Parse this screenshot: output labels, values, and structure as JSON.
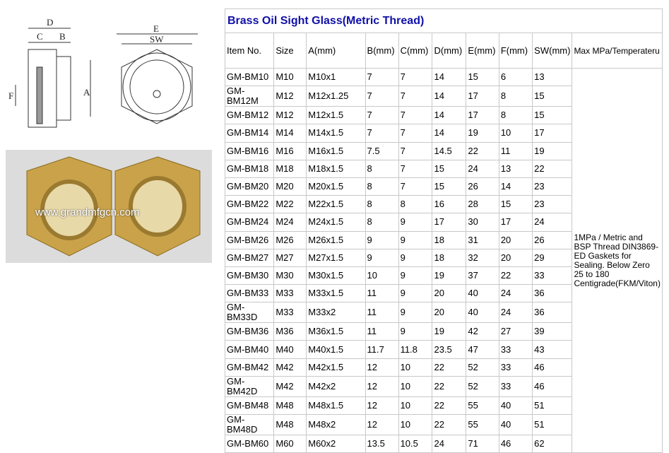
{
  "title": "Brass Oil Sight Glass(Metric Thread)",
  "headers": [
    "Item No.",
    "Size",
    "A(mm)",
    "B(mm)",
    "C(mm)",
    "D(mm)",
    "E(mm)",
    "F(mm)",
    "SW(mm)",
    "Max MPa/Temperateru"
  ],
  "rows": [
    [
      "GM-BM10",
      "M10",
      "M10x1",
      "7",
      "7",
      "14",
      "15",
      "6",
      "13"
    ],
    [
      "GM-BM12M",
      "M12",
      "M12x1.25",
      "7",
      "7",
      "14",
      "17",
      "8",
      "15"
    ],
    [
      "GM-BM12",
      "M12",
      "M12x1.5",
      "7",
      "7",
      "14",
      "17",
      "8",
      "15"
    ],
    [
      "GM-BM14",
      "M14",
      "M14x1.5",
      "7",
      "7",
      "14",
      "19",
      "10",
      "17"
    ],
    [
      "GM-BM16",
      "M16",
      "M16x1.5",
      "7.5",
      "7",
      "14.5",
      "22",
      "11",
      "19"
    ],
    [
      "GM-BM18",
      "M18",
      "M18x1.5",
      "8",
      "7",
      "15",
      "24",
      "13",
      "22"
    ],
    [
      "GM-BM20",
      "M20",
      "M20x1.5",
      "8",
      "7",
      "15",
      "26",
      "14",
      "23"
    ],
    [
      "GM-BM22",
      "M22",
      "M22x1.5",
      "8",
      "8",
      "16",
      "28",
      "15",
      "23"
    ],
    [
      "GM-BM24",
      "M24",
      "M24x1.5",
      "8",
      "9",
      "17",
      "30",
      "17",
      "24"
    ],
    [
      "GM-BM26",
      "M26",
      "M26x1.5",
      "9",
      "9",
      "18",
      "31",
      "20",
      "26"
    ],
    [
      "GM-BM27",
      "M27",
      "M27x1.5",
      "9",
      "9",
      "18",
      "32",
      "20",
      "29"
    ],
    [
      "GM-BM30",
      "M30",
      "M30x1.5",
      "10",
      "9",
      "19",
      "37",
      "22",
      "33"
    ],
    [
      "GM-BM33",
      "M33",
      "M33x1.5",
      "11",
      "9",
      "20",
      "40",
      "24",
      "36"
    ],
    [
      "GM-BM33D",
      "M33",
      "M33x2",
      "11",
      "9",
      "20",
      "40",
      "24",
      "36"
    ],
    [
      "GM-BM36",
      "M36",
      "M36x1.5",
      "11",
      "9",
      "19",
      "42",
      "27",
      "39"
    ],
    [
      "GM-BM40",
      "M40",
      "M40x1.5",
      "11.7",
      "11.8",
      "23.5",
      "47",
      "33",
      "43"
    ],
    [
      "GM-BM42",
      "M42",
      "M42x1.5",
      "12",
      "10",
      "22",
      "52",
      "33",
      "46"
    ],
    [
      "GM-BM42D",
      "M42",
      "M42x2",
      "12",
      "10",
      "22",
      "52",
      "33",
      "46"
    ],
    [
      "GM-BM48",
      "M48",
      "M48x1.5",
      "12",
      "10",
      "22",
      "55",
      "40",
      "51"
    ],
    [
      "GM-BM48D",
      "M48",
      "M48x2",
      "12",
      "10",
      "22",
      "55",
      "40",
      "51"
    ],
    [
      "GM-BM60",
      "M60",
      "M60x2",
      "13.5",
      "10.5",
      "24",
      "71",
      "46",
      "62"
    ]
  ],
  "note": "1MPa / Metric and BSP Thread DIN3869-ED Gaskets for Sealing. Below Zero 25 to 180 Centigrade(FKM/Viton)",
  "drawing_labels": {
    "d": "D",
    "c": "C",
    "b": "B",
    "f": "F",
    "a": "A",
    "e": "E",
    "sw": "SW"
  },
  "watermark": "www.grandmfgcn.com"
}
